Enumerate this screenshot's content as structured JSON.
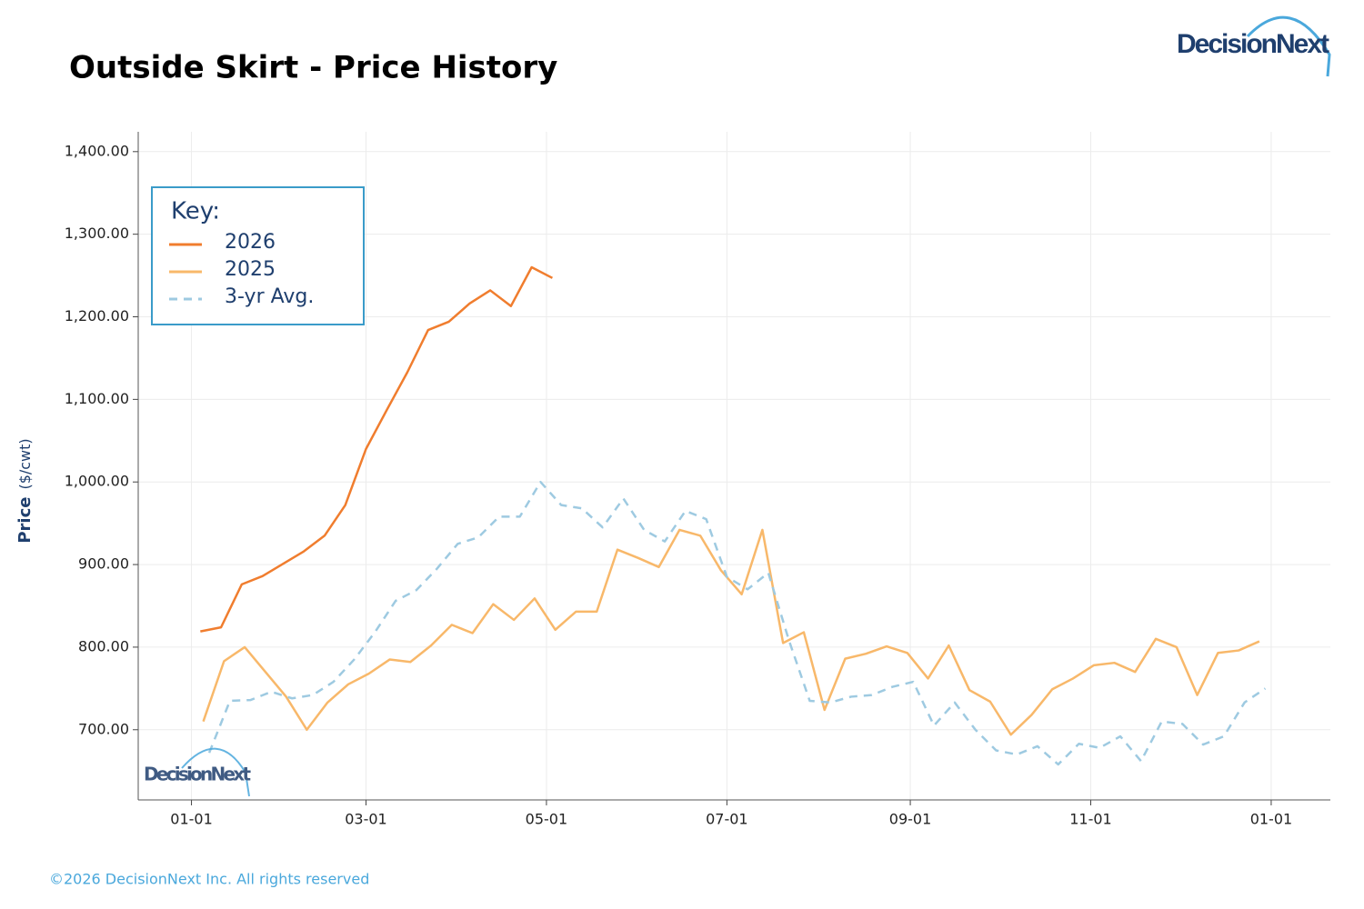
{
  "logo": "DecisionNext",
  "copyright": "©2026 DecisionNext Inc. All rights reserved",
  "chart_data": {
    "type": "line",
    "title": "Outside Skirt - Price History",
    "ylabel": "Price",
    "yunit": "($/cwt)",
    "legend_title": "Key:",
    "legend_loc": "upper left",
    "grid": true,
    "xlim": [
      -18,
      385
    ],
    "ylim": [
      615,
      1424
    ],
    "xticks": [
      {
        "value": 0,
        "label": "01-01"
      },
      {
        "value": 59,
        "label": "03-01"
      },
      {
        "value": 120,
        "label": "05-01"
      },
      {
        "value": 181,
        "label": "07-01"
      },
      {
        "value": 243,
        "label": "09-01"
      },
      {
        "value": 304,
        "label": "11-01"
      },
      {
        "value": 365,
        "label": "01-01"
      }
    ],
    "yticks": [
      {
        "value": 700,
        "label": "700.00"
      },
      {
        "value": 800,
        "label": "800.00"
      },
      {
        "value": 900,
        "label": "900.00"
      },
      {
        "value": 1000,
        "label": "1,000.00"
      },
      {
        "value": 1100,
        "label": "1,100.00"
      },
      {
        "value": 1200,
        "label": "1,200.00"
      },
      {
        "value": 1300,
        "label": "1,300.00"
      },
      {
        "value": 1400,
        "label": "1,400.00"
      }
    ],
    "series": [
      {
        "name": "2026",
        "color": "#f07d2e",
        "linestyle": "solid",
        "x": [
          3,
          10,
          17,
          24,
          31,
          38,
          45,
          52,
          59,
          66,
          73,
          80,
          87,
          94,
          101,
          108,
          115,
          122
        ],
        "values": [
          819,
          824,
          876,
          886,
          901,
          916,
          935,
          972,
          1040,
          1087,
          1133,
          1184,
          1194,
          1216,
          1232,
          1213,
          1260,
          1247
        ]
      },
      {
        "name": "2025",
        "color": "#f8b86a",
        "linestyle": "solid",
        "x": [
          4,
          11,
          18,
          25,
          32,
          39,
          46,
          53,
          60,
          67,
          74,
          81,
          88,
          95,
          102,
          109,
          116,
          123,
          130,
          137,
          144,
          151,
          158,
          165,
          172,
          179,
          186,
          193,
          200,
          207,
          214,
          221,
          228,
          235,
          242,
          249,
          256,
          263,
          270,
          277,
          284,
          291,
          298,
          305,
          312,
          319,
          326,
          333,
          340,
          347,
          354,
          361
        ],
        "values": [
          710,
          783,
          800,
          770,
          740,
          700,
          733,
          755,
          768,
          785,
          782,
          802,
          827,
          817,
          852,
          833,
          859,
          821,
          843,
          843,
          918,
          908,
          897,
          942,
          935,
          893,
          864,
          942,
          805,
          818,
          724,
          786,
          792,
          801,
          793,
          762,
          802,
          748,
          734,
          694,
          718,
          749,
          762,
          778,
          781,
          770,
          810,
          800,
          742,
          793,
          796,
          807
        ]
      },
      {
        "name": "3-yr Avg.",
        "color": "#9ecae1",
        "linestyle": "dashed",
        "x": [
          6,
          13,
          20,
          27,
          34,
          41,
          48,
          55,
          62,
          69,
          76,
          83,
          90,
          97,
          104,
          111,
          118,
          125,
          132,
          139,
          146,
          153,
          160,
          167,
          174,
          181,
          188,
          195,
          202,
          209,
          216,
          223,
          230,
          237,
          244,
          251,
          258,
          265,
          272,
          279,
          286,
          293,
          300,
          307,
          314,
          321,
          328,
          335,
          342,
          349,
          356,
          363
        ],
        "values": [
          672,
          735,
          736,
          746,
          738,
          742,
          758,
          785,
          818,
          856,
          869,
          895,
          925,
          933,
          958,
          958,
          1000,
          972,
          968,
          945,
          980,
          942,
          928,
          965,
          955,
          885,
          870,
          890,
          808,
          735,
          733,
          740,
          742,
          752,
          758,
          705,
          733,
          700,
          675,
          670,
          680,
          658,
          683,
          678,
          692,
          662,
          710,
          707,
          682,
          692,
          733,
          750
        ]
      }
    ]
  }
}
